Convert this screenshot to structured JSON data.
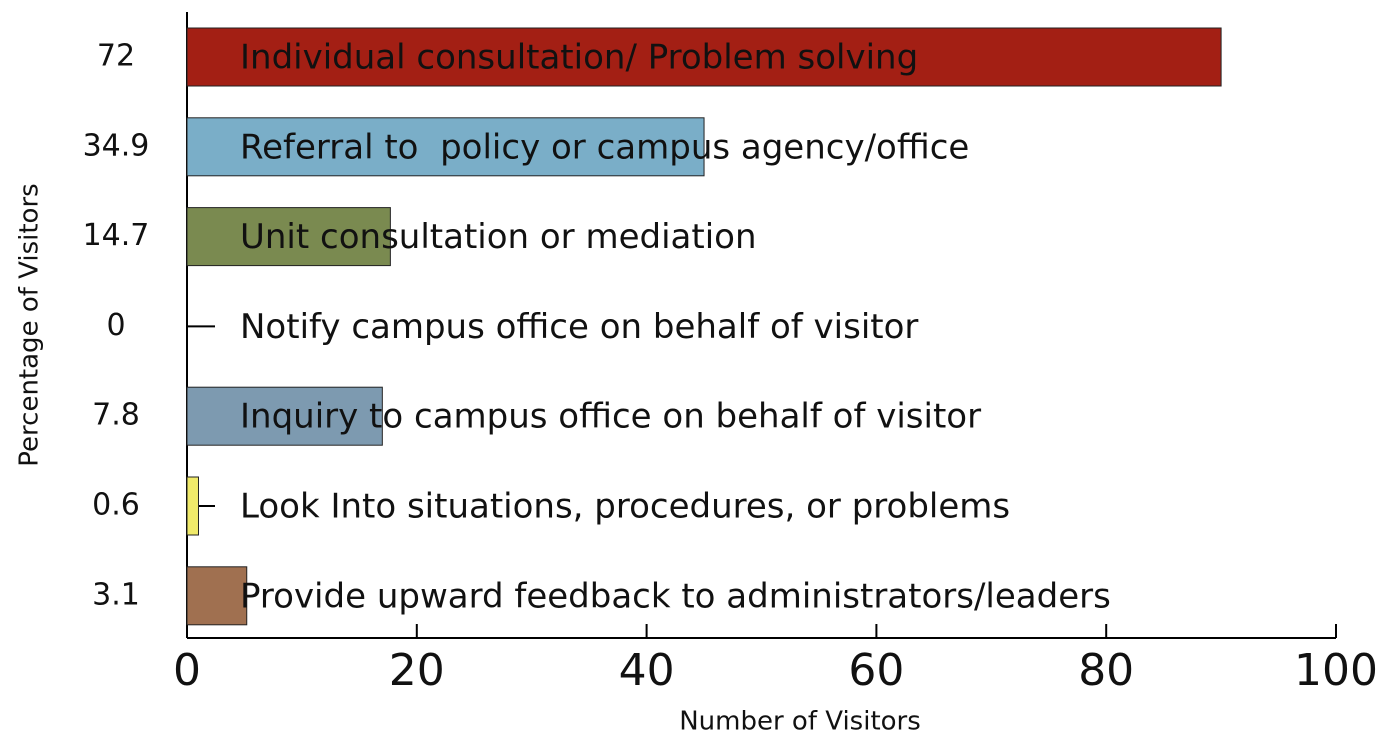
{
  "chart_data": {
    "type": "bar",
    "orientation": "horizontal",
    "xlabel": "Number of Visitors",
    "ylabel": "Percentage of Visitors",
    "categories": [
      "Individual consultation/ Problem solving",
      "Referral to  policy or campus agency/office",
      "Unit consultation or mediation",
      "Notify campus office on behalf of visitor",
      "Inquiry to campus office on behalf of visitor",
      "Look Into situations, procedures, or problems",
      "Provide upward feedback to administrators/leaders"
    ],
    "percentages": [
      72,
      34.9,
      14.7,
      0,
      7.8,
      0.6,
      3.1
    ],
    "values": [
      90,
      45,
      17.7,
      0,
      17,
      1,
      5.2
    ],
    "colors": [
      "#a31f14",
      "#7aaec8",
      "#7a8a50",
      "#000000",
      "#7d9ab0",
      "#f0ea6a",
      "#a07050"
    ],
    "xlim": [
      0,
      100
    ],
    "xticks": [
      0,
      20,
      40,
      60,
      80,
      100
    ]
  }
}
